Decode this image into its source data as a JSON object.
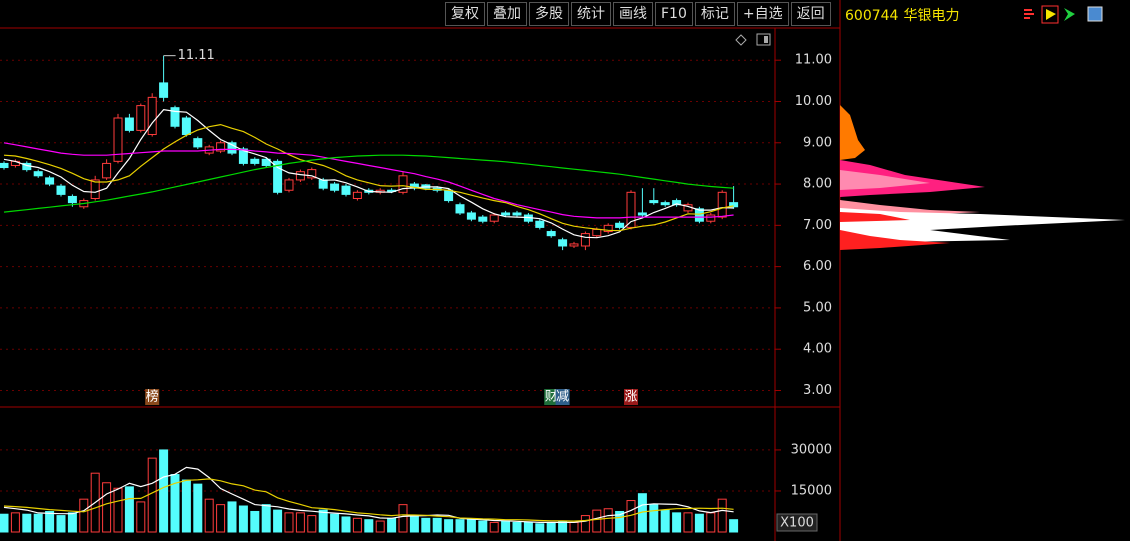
{
  "toolbar": {
    "buttons": [
      "复权",
      "叠加",
      "多股",
      "统计",
      "画线",
      "F10",
      "标记",
      "+自选",
      "返回"
    ]
  },
  "stock": {
    "code": "600744",
    "name": "华银电力"
  },
  "chart_data": [
    {
      "type": "candlestick",
      "up_color": "#ff3c3c",
      "down_color": "#54fcfc",
      "grid": true,
      "ylim": [
        2.6,
        11.78
      ],
      "yticks": [
        {
          "value": 3,
          "label": "3.00"
        },
        {
          "value": 4,
          "label": "4.00"
        },
        {
          "value": 5,
          "label": "5.00"
        },
        {
          "value": 6,
          "label": "6.00"
        },
        {
          "value": 7,
          "label": "7.00"
        },
        {
          "value": 8,
          "label": "8.00"
        },
        {
          "value": 9,
          "label": "9.00"
        },
        {
          "value": 10,
          "label": "10.00"
        },
        {
          "value": 11,
          "label": "11.00"
        }
      ],
      "high_label": "11.11",
      "open": [
        8.5,
        8.45,
        8.5,
        8.3,
        8.15,
        7.95,
        7.7,
        7.45,
        7.65,
        8.15,
        8.55,
        9.6,
        9.3,
        9.2,
        10.45,
        9.85,
        9.6,
        9.1,
        8.75,
        8.8,
        9.0,
        8.85,
        8.6,
        8.6,
        8.55,
        7.85,
        8.1,
        8.15,
        8.1,
        8.0,
        7.95,
        7.65,
        7.85,
        7.8,
        7.85,
        7.8,
        8.0,
        7.98,
        7.9,
        7.85,
        7.5,
        7.3,
        7.2,
        7.1,
        7.3,
        7.3,
        7.25,
        7.1,
        6.85,
        6.65,
        6.5,
        6.5,
        6.75,
        6.85,
        7.05,
        6.95,
        7.3,
        7.6,
        7.55,
        7.6,
        7.35,
        7.4,
        7.1,
        7.2,
        7.55
      ],
      "high": [
        8.55,
        8.6,
        8.55,
        8.35,
        8.2,
        8.0,
        7.75,
        7.65,
        8.2,
        8.6,
        9.7,
        9.7,
        9.95,
        10.2,
        11.11,
        9.9,
        9.65,
        9.15,
        8.95,
        9.05,
        9.05,
        8.9,
        8.65,
        8.65,
        8.6,
        8.15,
        8.35,
        8.4,
        8.15,
        8.05,
        8.0,
        7.85,
        7.9,
        7.9,
        7.9,
        8.3,
        8.05,
        8.0,
        7.95,
        7.9,
        7.55,
        7.35,
        7.25,
        7.3,
        7.35,
        7.35,
        7.3,
        7.15,
        6.9,
        6.7,
        6.6,
        6.85,
        6.95,
        7.05,
        7.1,
        7.85,
        7.9,
        7.9,
        7.6,
        7.65,
        7.55,
        7.45,
        7.3,
        7.85,
        7.95
      ],
      "low": [
        8.35,
        8.4,
        8.3,
        8.15,
        7.95,
        7.7,
        7.45,
        7.4,
        7.6,
        8.1,
        8.5,
        9.25,
        9.25,
        9.15,
        10.0,
        9.35,
        9.15,
        8.85,
        8.7,
        8.75,
        8.7,
        8.45,
        8.45,
        8.4,
        7.75,
        7.8,
        8.05,
        8.1,
        7.85,
        7.8,
        7.7,
        7.6,
        7.75,
        7.75,
        7.78,
        7.75,
        7.85,
        7.85,
        7.8,
        7.55,
        7.25,
        7.1,
        7.05,
        7.05,
        7.2,
        7.2,
        7.05,
        6.9,
        6.7,
        6.4,
        6.45,
        6.4,
        6.7,
        6.8,
        6.9,
        6.9,
        7.2,
        7.5,
        7.45,
        7.45,
        7.3,
        7.05,
        7.05,
        7.15,
        7.4
      ],
      "close": [
        8.4,
        8.55,
        8.35,
        8.2,
        8.0,
        7.75,
        7.55,
        7.6,
        8.1,
        8.5,
        9.6,
        9.3,
        9.9,
        10.1,
        10.1,
        9.4,
        9.2,
        8.9,
        8.9,
        9.0,
        8.75,
        8.5,
        8.5,
        8.45,
        7.8,
        8.1,
        8.3,
        8.35,
        7.9,
        7.85,
        7.75,
        7.8,
        7.8,
        7.85,
        7.82,
        8.2,
        7.9,
        7.9,
        7.85,
        7.6,
        7.3,
        7.15,
        7.1,
        7.25,
        7.25,
        7.25,
        7.1,
        6.95,
        6.75,
        6.5,
        6.55,
        6.8,
        6.9,
        7.0,
        6.95,
        7.8,
        7.25,
        7.55,
        7.5,
        7.5,
        7.5,
        7.1,
        7.25,
        7.8,
        7.45
      ],
      "events": [
        null,
        null,
        null,
        null,
        null,
        null,
        null,
        null,
        null,
        null,
        null,
        null,
        null,
        "榜",
        null,
        null,
        null,
        null,
        null,
        null,
        null,
        null,
        null,
        null,
        null,
        null,
        null,
        null,
        null,
        null,
        null,
        null,
        null,
        null,
        null,
        null,
        null,
        null,
        null,
        null,
        null,
        null,
        null,
        null,
        null,
        null,
        null,
        null,
        "财",
        "减",
        null,
        null,
        null,
        null,
        null,
        "涨",
        null,
        null,
        null,
        null,
        null,
        null,
        null,
        null,
        null
      ],
      "ma_lines": [
        {
          "color": "#ffffff",
          "values": [
            8.6,
            8.55,
            8.45,
            8.4,
            8.3,
            8.17,
            7.97,
            7.82,
            7.8,
            7.9,
            8.27,
            8.62,
            9.08,
            9.48,
            9.8,
            9.76,
            9.74,
            9.54,
            9.3,
            9.08,
            8.95,
            8.81,
            8.73,
            8.64,
            8.4,
            8.27,
            8.23,
            8.2,
            8.09,
            8.1,
            8.03,
            7.93,
            7.82,
            7.81,
            7.8,
            7.89,
            7.91,
            7.93,
            7.93,
            7.89,
            7.71,
            7.56,
            7.4,
            7.28,
            7.21,
            7.2,
            7.19,
            7.16,
            7.06,
            6.91,
            6.77,
            6.71,
            6.7,
            6.75,
            6.84,
            7.09,
            7.18,
            7.31,
            7.41,
            7.52,
            7.46,
            7.37,
            7.37,
            7.43,
            7.42
          ]
        },
        {
          "color": "#e8d000",
          "values": [
            8.7,
            8.68,
            8.62,
            8.55,
            8.47,
            8.38,
            8.26,
            8.13,
            8.05,
            8.05,
            8.1,
            8.2,
            8.43,
            8.64,
            8.85,
            9.02,
            9.18,
            9.31,
            9.39,
            9.44,
            9.35,
            9.27,
            9.13,
            8.97,
            8.85,
            8.71,
            8.59,
            8.52,
            8.45,
            8.34,
            8.2,
            8.1,
            8.03,
            7.96,
            7.95,
            7.96,
            7.92,
            7.87,
            7.87,
            7.85,
            7.8,
            7.73,
            7.66,
            7.6,
            7.55,
            7.46,
            7.38,
            7.28,
            7.16,
            7.05,
            6.98,
            6.94,
            6.91,
            6.88,
            6.87,
            6.93,
            6.98,
            7.01,
            7.08,
            7.18,
            7.28,
            7.27,
            7.33,
            7.42,
            7.47
          ]
        },
        {
          "color": "#ff00ff",
          "values": [
            9.0,
            8.95,
            8.9,
            8.85,
            8.8,
            8.75,
            8.72,
            8.7,
            8.7,
            8.7,
            8.72,
            8.74,
            8.76,
            8.78,
            8.8,
            8.8,
            8.8,
            8.8,
            8.82,
            8.84,
            8.84,
            8.83,
            8.8,
            8.78,
            8.75,
            8.74,
            8.72,
            8.7,
            8.65,
            8.6,
            8.55,
            8.5,
            8.45,
            8.4,
            8.35,
            8.3,
            8.25,
            8.18,
            8.12,
            8.05,
            7.95,
            7.85,
            7.75,
            7.65,
            7.58,
            7.5,
            7.44,
            7.38,
            7.32,
            7.26,
            7.22,
            7.2,
            7.18,
            7.18,
            7.18,
            7.2,
            7.2,
            7.2,
            7.2,
            7.2,
            7.2,
            7.2,
            7.2,
            7.22,
            7.25
          ]
        },
        {
          "color": "#00d800",
          "values": [
            7.32,
            7.35,
            7.38,
            7.41,
            7.44,
            7.47,
            7.5,
            7.53,
            7.57,
            7.61,
            7.66,
            7.71,
            7.76,
            7.81,
            7.87,
            7.93,
            7.99,
            8.05,
            8.11,
            8.17,
            8.23,
            8.29,
            8.35,
            8.4,
            8.45,
            8.5,
            8.54,
            8.58,
            8.61,
            8.64,
            8.66,
            8.68,
            8.69,
            8.7,
            8.7,
            8.7,
            8.69,
            8.68,
            8.66,
            8.64,
            8.62,
            8.6,
            8.58,
            8.56,
            8.54,
            8.51,
            8.48,
            8.45,
            8.42,
            8.39,
            8.36,
            8.33,
            8.3,
            8.27,
            8.24,
            8.2,
            8.16,
            8.12,
            8.08,
            8.04,
            8.0,
            7.97,
            7.94,
            7.92,
            7.9
          ]
        }
      ]
    },
    {
      "type": "volume",
      "unit_label": "X100",
      "grid": true,
      "ylim": [
        0,
        44600
      ],
      "yticks": [
        15000,
        30000
      ],
      "values": [
        6500,
        7000,
        6500,
        6500,
        7500,
        6000,
        7000,
        12000,
        21500,
        18000,
        16000,
        16500,
        11000,
        27000,
        30000,
        21000,
        19000,
        17500,
        12000,
        10000,
        11000,
        9500,
        7500,
        10000,
        8000,
        7000,
        7000,
        6000,
        8000,
        6500,
        5500,
        5000,
        4500,
        4000,
        5000,
        10000,
        6000,
        5000,
        5000,
        4500,
        4500,
        4500,
        4000,
        3500,
        4000,
        3500,
        3500,
        3000,
        3500,
        4000,
        3500,
        6000,
        8000,
        8500,
        7500,
        11500,
        14000,
        10000,
        8000,
        7000,
        7000,
        6500,
        7000,
        12000,
        4500
      ],
      "ma_lines": [
        {
          "color": "#ffffff",
          "values": [
            9000,
            8500,
            8000,
            7000,
            6800,
            6700,
            6700,
            7800,
            10800,
            13900,
            15700,
            17800,
            16600,
            17800,
            20100,
            21100,
            23600,
            23000,
            19900,
            15900,
            13900,
            12000,
            10000,
            9600,
            9200,
            8400,
            7900,
            7600,
            7200,
            6900,
            6600,
            6200,
            5900,
            5100,
            5000,
            5700,
            5900,
            6000,
            6200,
            6100,
            5000,
            4700,
            4500,
            4200,
            4100,
            3900,
            3700,
            3500,
            3500,
            3500,
            3500,
            4000,
            5000,
            6000,
            6300,
            7900,
            9900,
            10300,
            10200,
            10100,
            9200,
            7700,
            7100,
            7900,
            7400
          ]
        },
        {
          "color": "#e8d000",
          "values": [
            9500,
            9300,
            9000,
            8600,
            8200,
            7900,
            7600,
            7400,
            8800,
            10300,
            11300,
            12200,
            12300,
            14300,
            16300,
            17800,
            18900,
            19100,
            19400,
            18700,
            17600,
            16900,
            15300,
            14700,
            12500,
            11200,
            10100,
            8900,
            8600,
            8200,
            7600,
            7000,
            6700,
            6300,
            6000,
            6300,
            6200,
            6100,
            5800,
            5600,
            5100,
            5000,
            4800,
            4700,
            4500,
            4500,
            4400,
            4200,
            4100,
            4100,
            4000,
            4200,
            4600,
            5000,
            5300,
            6100,
            7300,
            7800,
            8200,
            8500,
            8600,
            8700,
            8600,
            8700,
            8300
          ]
        }
      ]
    }
  ]
}
